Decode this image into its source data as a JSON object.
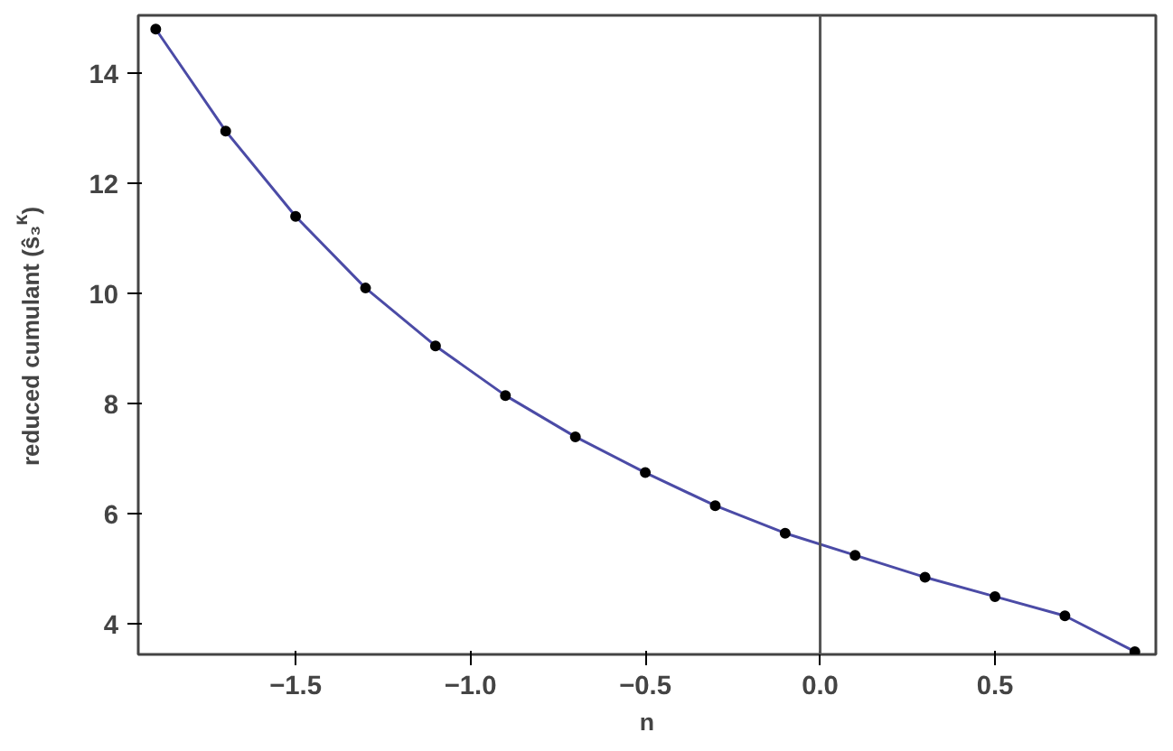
{
  "chart_data": {
    "type": "line",
    "xlabel": "n",
    "ylabel": "reduced cumulant (ŝ₃$^{κ}$)",
    "x": [
      -1.9,
      -1.7,
      -1.5,
      -1.3,
      -1.1,
      -0.9,
      -0.7,
      -0.5,
      -0.3,
      -0.1,
      0.1,
      0.3,
      0.5,
      0.7,
      0.9
    ],
    "series": [
      {
        "color": "#4b4ba6",
        "marker": "none",
        "values": [
          14.8,
          12.95,
          11.4,
          10.1,
          9.05,
          8.15,
          7.4,
          6.75,
          6.15,
          5.65,
          5.25,
          4.85,
          4.5,
          4.15,
          3.5
        ]
      },
      {
        "type": "scatter",
        "color": "#000000",
        "marker": "circle",
        "values": [
          14.8,
          12.95,
          11.4,
          10.1,
          9.05,
          8.15,
          7.4,
          6.75,
          6.15,
          5.65,
          5.25,
          4.85,
          4.5,
          4.15,
          3.5
        ]
      }
    ],
    "xlim": [
      -1.95,
      0.96
    ],
    "ylim": [
      3.45,
      15.05
    ],
    "xticks": [
      {
        "value": -1.5,
        "label": "−1.5"
      },
      {
        "value": -1.0,
        "label": "−1.0"
      },
      {
        "value": -0.5,
        "label": "−0.5"
      },
      {
        "value": 0.0,
        "label": "0.0"
      },
      {
        "value": 0.5,
        "label": "0.5"
      }
    ],
    "yticks": [
      4,
      6,
      8,
      10,
      12,
      14
    ],
    "ref_lines": [
      {
        "axis": "x",
        "value": 0,
        "color": "#555555"
      }
    ],
    "grid": false
  }
}
